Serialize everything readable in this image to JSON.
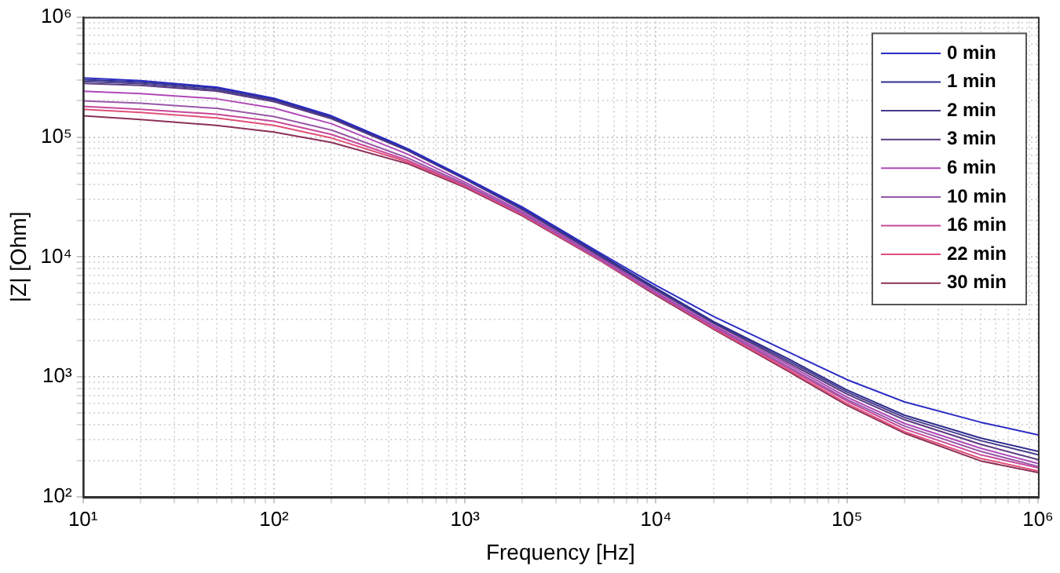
{
  "chart_data": {
    "type": "line",
    "xlabel": "Frequency [Hz]",
    "ylabel": "|Z| [Ohm]",
    "log": "xy",
    "grid": true,
    "legend": "top right",
    "marker": "none",
    "line_style": "solid",
    "xlim": [
      10,
      1000000
    ],
    "ylim": [
      100,
      1000000
    ],
    "xticks": [
      {
        "value": 10,
        "label": "10¹"
      },
      {
        "value": 20,
        "label": null
      },
      {
        "value": 30,
        "label": null
      },
      {
        "value": 40,
        "label": null
      },
      {
        "value": 50,
        "label": null
      },
      {
        "value": 60,
        "label": null
      },
      {
        "value": 70,
        "label": null
      },
      {
        "value": 80,
        "label": null
      },
      {
        "value": 90,
        "label": null
      },
      {
        "value": 100,
        "label": "10²"
      },
      {
        "value": 200,
        "label": null
      },
      {
        "value": 300,
        "label": null
      },
      {
        "value": 400,
        "label": null
      },
      {
        "value": 500,
        "label": null
      },
      {
        "value": 600,
        "label": null
      },
      {
        "value": 700,
        "label": null
      },
      {
        "value": 800,
        "label": null
      },
      {
        "value": 900,
        "label": null
      },
      {
        "value": 1000,
        "label": "10³"
      },
      {
        "value": 2000,
        "label": null
      },
      {
        "value": 3000,
        "label": null
      },
      {
        "value": 4000,
        "label": null
      },
      {
        "value": 5000,
        "label": null
      },
      {
        "value": 6000,
        "label": null
      },
      {
        "value": 7000,
        "label": null
      },
      {
        "value": 8000,
        "label": null
      },
      {
        "value": 9000,
        "label": null
      },
      {
        "value": 10000,
        "label": "10⁴"
      },
      {
        "value": 20000,
        "label": null
      },
      {
        "value": 30000,
        "label": null
      },
      {
        "value": 40000,
        "label": null
      },
      {
        "value": 50000,
        "label": null
      },
      {
        "value": 60000,
        "label": null
      },
      {
        "value": 70000,
        "label": null
      },
      {
        "value": 80000,
        "label": null
      },
      {
        "value": 90000,
        "label": null
      },
      {
        "value": 100000,
        "label": "10⁵"
      },
      {
        "value": 200000,
        "label": null
      },
      {
        "value": 300000,
        "label": null
      },
      {
        "value": 400000,
        "label": null
      },
      {
        "value": 500000,
        "label": null
      },
      {
        "value": 600000,
        "label": null
      },
      {
        "value": 700000,
        "label": null
      },
      {
        "value": 800000,
        "label": null
      },
      {
        "value": 900000,
        "label": null
      },
      {
        "value": 1000000,
        "label": "10⁶"
      }
    ],
    "yticks": [
      {
        "value": 100,
        "label": "10²"
      },
      {
        "value": 200,
        "label": null
      },
      {
        "value": 300,
        "label": null
      },
      {
        "value": 400,
        "label": null
      },
      {
        "value": 500,
        "label": null
      },
      {
        "value": 600,
        "label": null
      },
      {
        "value": 700,
        "label": null
      },
      {
        "value": 800,
        "label": null
      },
      {
        "value": 900,
        "label": null
      },
      {
        "value": 1000,
        "label": "10³"
      },
      {
        "value": 2000,
        "label": null
      },
      {
        "value": 3000,
        "label": null
      },
      {
        "value": 4000,
        "label": null
      },
      {
        "value": 5000,
        "label": null
      },
      {
        "value": 6000,
        "label": null
      },
      {
        "value": 7000,
        "label": null
      },
      {
        "value": 8000,
        "label": null
      },
      {
        "value": 9000,
        "label": null
      },
      {
        "value": 10000,
        "label": "10⁴"
      },
      {
        "value": 20000,
        "label": null
      },
      {
        "value": 30000,
        "label": null
      },
      {
        "value": 40000,
        "label": null
      },
      {
        "value": 50000,
        "label": null
      },
      {
        "value": 60000,
        "label": null
      },
      {
        "value": 70000,
        "label": null
      },
      {
        "value": 80000,
        "label": null
      },
      {
        "value": 90000,
        "label": null
      },
      {
        "value": 100000,
        "label": "10⁵"
      },
      {
        "value": 200000,
        "label": null
      },
      {
        "value": 300000,
        "label": null
      },
      {
        "value": 400000,
        "label": null
      },
      {
        "value": 500000,
        "label": null
      },
      {
        "value": 600000,
        "label": null
      },
      {
        "value": 700000,
        "label": null
      },
      {
        "value": 800000,
        "label": null
      },
      {
        "value": 900000,
        "label": null
      },
      {
        "value": 1000000,
        "label": "10⁶"
      }
    ],
    "x": [
      10,
      20,
      50,
      100,
      200,
      500,
      1000,
      2000,
      5000,
      10000,
      20000,
      50000,
      100000,
      200000,
      500000,
      1000000
    ],
    "series": [
      {
        "name": "0 min",
        "color": "#2b2bc4",
        "values": [
          310000,
          295000,
          260000,
          210000,
          150000,
          80000,
          46000,
          26000,
          11000,
          5800,
          3200,
          1600,
          950,
          620,
          420,
          330
        ]
      },
      {
        "name": "1 min",
        "color": "#2e2e8e",
        "values": [
          300000,
          287000,
          255000,
          207000,
          148000,
          79000,
          45500,
          25500,
          10700,
          5500,
          2900,
          1400,
          780,
          480,
          310,
          240
        ]
      },
      {
        "name": "2 min",
        "color": "#463a8c",
        "values": [
          290000,
          278000,
          248000,
          202000,
          145000,
          78000,
          45000,
          25000,
          10500,
          5400,
          2850,
          1350,
          750,
          460,
          295,
          225
        ]
      },
      {
        "name": "3 min",
        "color": "#5a3a80",
        "values": [
          280000,
          269000,
          241000,
          197000,
          142000,
          77000,
          44500,
          24700,
          10300,
          5300,
          2800,
          1300,
          720,
          440,
          275,
          205
        ]
      },
      {
        "name": "6 min",
        "color": "#b048b8",
        "values": [
          240000,
          230000,
          208000,
          174000,
          129000,
          72000,
          42000,
          23800,
          10000,
          5100,
          2700,
          1250,
          680,
          410,
          255,
          190
        ]
      },
      {
        "name": "10 min",
        "color": "#9a58a8",
        "values": [
          200000,
          191000,
          173000,
          148000,
          114000,
          67000,
          40500,
          23200,
          9800,
          5000,
          2650,
          1200,
          650,
          390,
          240,
          180
        ]
      },
      {
        "name": "16 min",
        "color": "#c8489a",
        "values": [
          180000,
          170000,
          155000,
          135000,
          105000,
          64000,
          39500,
          22800,
          9700,
          4950,
          2600,
          1170,
          630,
          370,
          225,
          175
        ]
      },
      {
        "name": "22 min",
        "color": "#e0507a",
        "values": [
          170000,
          160000,
          144000,
          125000,
          98000,
          62000,
          38800,
          22400,
          9600,
          4900,
          2550,
          1130,
          600,
          350,
          210,
          165
        ]
      },
      {
        "name": "30 min",
        "color": "#8c3058",
        "values": [
          150000,
          140000,
          125000,
          110000,
          90000,
          60000,
          38000,
          22000,
          9500,
          4800,
          2500,
          1100,
          580,
          340,
          200,
          160
        ]
      }
    ]
  }
}
